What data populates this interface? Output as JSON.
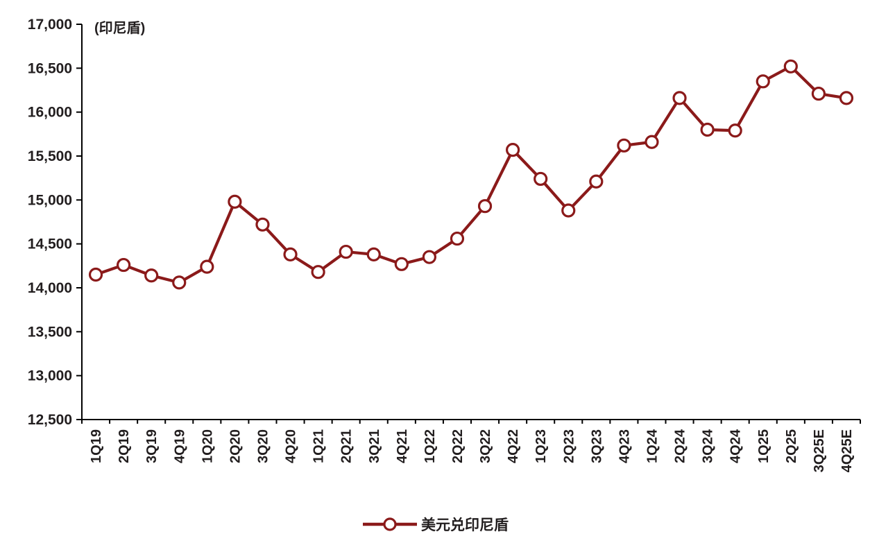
{
  "page": {
    "background": "#ffffff"
  },
  "chart_data": {
    "type": "line",
    "title": "",
    "unit_label": "(印尼盾)",
    "categories": [
      "1Q19",
      "2Q19",
      "3Q19",
      "4Q19",
      "1Q20",
      "2Q20",
      "3Q20",
      "4Q20",
      "1Q21",
      "2Q21",
      "3Q21",
      "4Q21",
      "1Q22",
      "2Q22",
      "3Q22",
      "4Q22",
      "1Q23",
      "2Q23",
      "3Q23",
      "4Q23",
      "1Q24",
      "2Q24",
      "3Q24",
      "4Q24",
      "1Q25",
      "2Q25",
      "3Q25E",
      "4Q25E"
    ],
    "series": [
      {
        "name": "美元兑印尼盾",
        "values": [
          14150,
          14260,
          14140,
          14060,
          14240,
          14980,
          14720,
          14380,
          14180,
          14410,
          14380,
          14270,
          14350,
          14560,
          14930,
          15570,
          15240,
          14880,
          15210,
          15620,
          15660,
          16160,
          15800,
          15790,
          16350,
          16520,
          16210,
          16160
        ],
        "color": "#8B1A1A",
        "marker": "open-circle"
      }
    ],
    "ylim": [
      12500,
      17000
    ],
    "yticks": [
      12500,
      13000,
      13500,
      14000,
      14500,
      15000,
      15500,
      16000,
      16500,
      17000
    ],
    "grid": false,
    "legend_position": "bottom",
    "axis_color": "#000000",
    "text_color": "#221e1f"
  }
}
